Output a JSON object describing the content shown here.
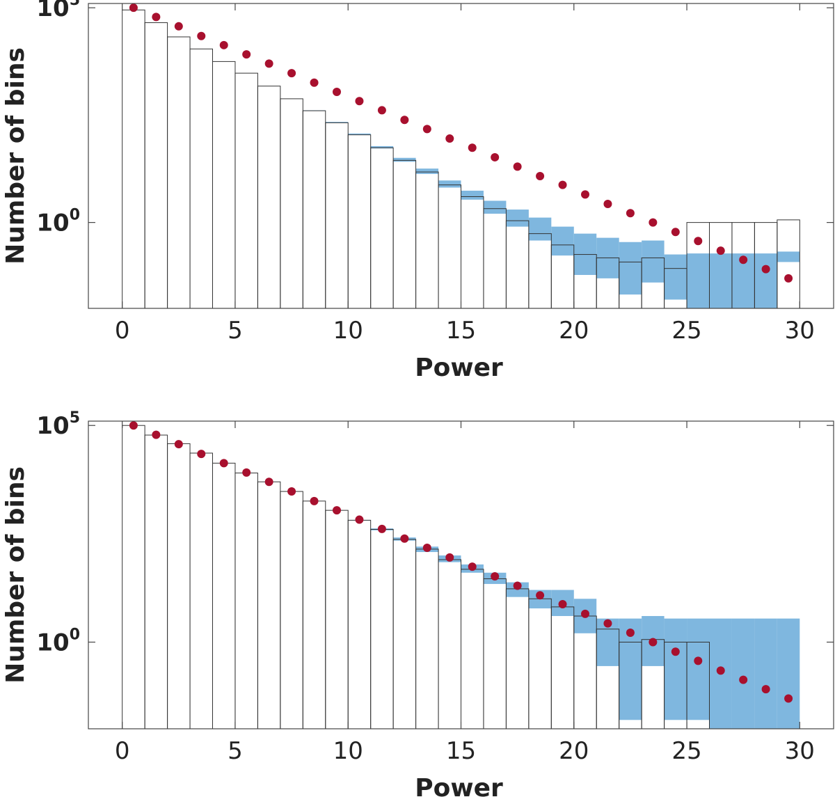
{
  "chart_data": [
    {
      "type": "bar",
      "xlabel": "Power",
      "ylabel": "Number of bins",
      "xlim": [
        -1.5,
        31.5
      ],
      "xticks": [
        0,
        5,
        10,
        15,
        20,
        25,
        30
      ],
      "ylog": true,
      "ylim_log10": [
        -2,
        5.1
      ],
      "yticks": [
        {
          "base": "10",
          "exp": "5",
          "value": 100000
        },
        {
          "base": "10",
          "exp": "0",
          "value": 1
        }
      ],
      "grid": false,
      "legend": "none",
      "colors": {
        "bars_edge": "#333333",
        "band": "#7fb7df",
        "dots": "#a8102e"
      },
      "series": [
        {
          "kind": "histogram",
          "bin_edges": [
            0,
            1,
            2,
            3,
            4,
            5,
            6,
            7,
            8,
            9,
            10,
            11,
            12,
            13,
            14,
            15,
            16,
            17,
            18,
            19,
            20,
            21,
            22,
            23,
            24,
            25,
            26,
            27,
            28,
            29,
            30
          ],
          "values": [
            89000,
            45000,
            21000,
            11000,
            5600,
            3000,
            1500,
            760,
            400,
            210,
            110,
            55,
            28,
            15,
            7.5,
            4,
            2.1,
            1.1,
            0.55,
            0.3,
            0.18,
            0.15,
            0.12,
            0.15,
            0.085,
            1,
            1,
            1,
            1,
            1.15
          ],
          "band_low": [
            89000,
            45000,
            21000,
            11000,
            5600,
            3000,
            1500,
            760,
            400,
            210,
            110,
            53,
            26,
            13.5,
            6.5,
            3.4,
            1.6,
            0.8,
            0.38,
            0.17,
            0.06,
            0.05,
            0.021,
            0.04,
            0.016,
            0.01,
            0.01,
            0.01,
            0.01,
            0.12
          ],
          "band_high": [
            89000,
            45000,
            21000,
            11000,
            5600,
            3000,
            1500,
            770,
            410,
            220,
            118,
            60,
            32,
            18,
            9.5,
            5.5,
            3.2,
            2.0,
            1.3,
            0.8,
            0.55,
            0.44,
            0.35,
            0.38,
            0.18,
            0.19,
            0.19,
            0.19,
            0.19,
            0.21
          ]
        },
        {
          "kind": "scatter",
          "x": [
            0.5,
            1.5,
            2.5,
            3.5,
            4.5,
            5.5,
            6.5,
            7.5,
            8.5,
            9.5,
            10.5,
            11.5,
            12.5,
            13.5,
            14.5,
            15.5,
            16.5,
            17.5,
            18.5,
            19.5,
            20.5,
            21.5,
            22.5,
            23.5,
            24.5,
            25.5,
            26.5,
            27.5,
            28.5,
            29.5
          ],
          "y": [
            100000,
            61000,
            37000,
            22000,
            13500,
            8200,
            5000,
            3000,
            1800,
            1100,
            670,
            410,
            245,
            150,
            90,
            55,
            33,
            20,
            12,
            7.5,
            4.5,
            2.7,
            1.65,
            1.0,
            0.6,
            0.37,
            0.22,
            0.135,
            0.082,
            0.05
          ]
        }
      ]
    },
    {
      "type": "bar",
      "xlabel": "Power",
      "ylabel": "Number of bins",
      "xlim": [
        -1.5,
        31.5
      ],
      "xticks": [
        0,
        5,
        10,
        15,
        20,
        25,
        30
      ],
      "ylog": true,
      "ylim_log10": [
        -2,
        5.1
      ],
      "yticks": [
        {
          "base": "10",
          "exp": "5",
          "value": 100000
        },
        {
          "base": "10",
          "exp": "0",
          "value": 1
        }
      ],
      "grid": false,
      "legend": "none",
      "colors": {
        "bars_edge": "#333333",
        "band": "#7fb7df",
        "dots": "#a8102e"
      },
      "series": [
        {
          "kind": "histogram",
          "bin_edges": [
            0,
            1,
            2,
            3,
            4,
            5,
            6,
            7,
            8,
            9,
            10,
            11,
            12,
            13,
            14,
            15,
            16,
            17,
            18,
            19,
            20,
            21,
            22,
            23,
            24,
            25,
            26,
            27,
            28,
            29,
            30
          ],
          "values": [
            100000,
            60000,
            38000,
            23000,
            13500,
            8000,
            5000,
            3000,
            1800,
            1100,
            650,
            400,
            235,
            140,
            80,
            48,
            29,
            17,
            10,
            6.5,
            4,
            2,
            1,
            1.15,
            1,
            1,
            0,
            0,
            0,
            0
          ],
          "band_low": [
            100000,
            60000,
            38000,
            23000,
            13500,
            8000,
            5000,
            3000,
            1800,
            1100,
            640,
            380,
            220,
            120,
            70,
            40,
            22,
            11,
            6,
            4,
            1.6,
            0.28,
            0.016,
            0.28,
            0.016,
            0.016,
            0.01,
            0.01,
            0.01,
            0.01
          ],
          "band_high": [
            100000,
            60000,
            38000,
            23000,
            13500,
            8000,
            5000,
            3000,
            1800,
            1100,
            660,
            420,
            260,
            160,
            100,
            62,
            40,
            24,
            16,
            16,
            10,
            3.5,
            3.5,
            4,
            3.5,
            3.5,
            3.5,
            3.5,
            3.5,
            3.5
          ]
        },
        {
          "kind": "scatter",
          "x": [
            0.5,
            1.5,
            2.5,
            3.5,
            4.5,
            5.5,
            6.5,
            7.5,
            8.5,
            9.5,
            10.5,
            11.5,
            12.5,
            13.5,
            14.5,
            15.5,
            16.5,
            17.5,
            18.5,
            19.5,
            20.5,
            21.5,
            22.5,
            23.5,
            24.5,
            25.5,
            26.5,
            27.5,
            28.5,
            29.5
          ],
          "y": [
            100000,
            61000,
            37000,
            22000,
            13500,
            8200,
            5000,
            3000,
            1800,
            1100,
            670,
            410,
            245,
            150,
            90,
            55,
            33,
            20,
            12,
            7.5,
            4.5,
            2.7,
            1.65,
            1.0,
            0.6,
            0.37,
            0.22,
            0.135,
            0.082,
            0.05
          ]
        }
      ]
    }
  ]
}
